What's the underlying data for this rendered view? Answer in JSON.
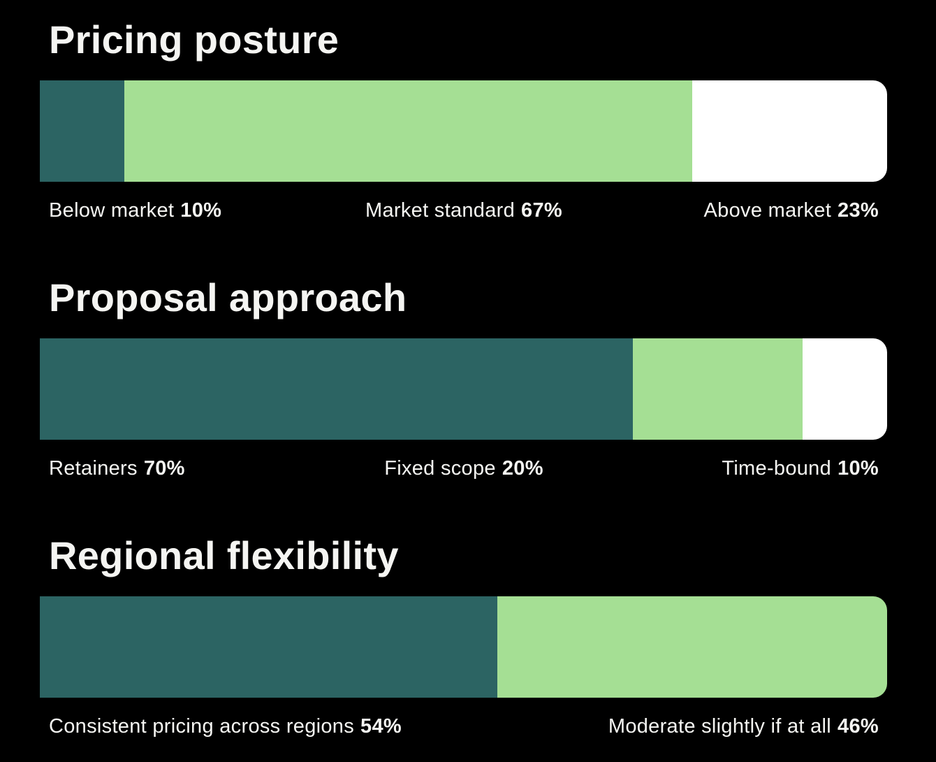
{
  "page": {
    "background_color": "#000000",
    "text_color": "#f5f5f2",
    "accent_dark_teal": "#2c6463",
    "accent_light_green": "#a5df94",
    "accent_white": "#ffffff"
  },
  "chart_data": [
    {
      "type": "bar",
      "variant": "horizontal-stacked-percentage",
      "title": "Pricing posture",
      "categories": [
        "Below market",
        "Market standard",
        "Above market"
      ],
      "values": [
        10,
        67,
        23
      ],
      "unit": "%",
      "xlim": [
        0,
        100
      ],
      "grid": false,
      "legend": "labels-below-bar",
      "segments": [
        {
          "label": "Below market",
          "value": 10,
          "value_text": "10%",
          "color": "#2c6463"
        },
        {
          "label": "Market standard",
          "value": 67,
          "value_text": "67%",
          "color": "#a5df94"
        },
        {
          "label": "Above market",
          "value": 23,
          "value_text": "23%",
          "color": "#ffffff"
        }
      ]
    },
    {
      "type": "bar",
      "variant": "horizontal-stacked-percentage",
      "title": "Proposal approach",
      "categories": [
        "Retainers",
        "Fixed scope",
        "Time-bound"
      ],
      "values": [
        70,
        20,
        10
      ],
      "unit": "%",
      "xlim": [
        0,
        100
      ],
      "grid": false,
      "legend": "labels-below-bar",
      "segments": [
        {
          "label": "Retainers",
          "value": 70,
          "value_text": "70%",
          "color": "#2c6463"
        },
        {
          "label": "Fixed scope",
          "value": 20,
          "value_text": "20%",
          "color": "#a5df94"
        },
        {
          "label": "Time-bound",
          "value": 10,
          "value_text": "10%",
          "color": "#ffffff"
        }
      ]
    },
    {
      "type": "bar",
      "variant": "horizontal-stacked-percentage",
      "title": "Regional flexibility",
      "categories": [
        "Consistent pricing across regions",
        "Moderate slightly if at all"
      ],
      "values": [
        54,
        46
      ],
      "unit": "%",
      "xlim": [
        0,
        100
      ],
      "grid": false,
      "legend": "labels-below-bar",
      "segments": [
        {
          "label": "Consistent pricing across regions",
          "value": 54,
          "value_text": "54%",
          "color": "#2c6463"
        },
        {
          "label": "Moderate slightly if at all",
          "value": 46,
          "value_text": "46%",
          "color": "#a5df94"
        }
      ]
    }
  ]
}
